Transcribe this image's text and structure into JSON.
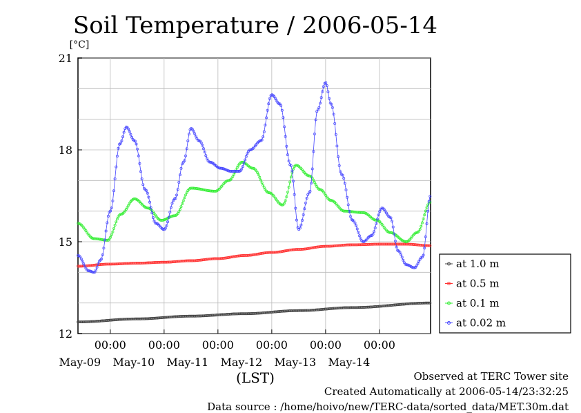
{
  "chart_data": {
    "type": "line",
    "title": "Soil Temperature / 2006-05-14",
    "ylabel": "[°C]",
    "xlabel": "(LST)",
    "ylim": [
      12,
      21
    ],
    "xlim": [
      8.4,
      14.95
    ],
    "yticks": [
      {
        "value": 12,
        "label": "12"
      },
      {
        "value": 15,
        "label": "15"
      },
      {
        "value": 18,
        "label": "18"
      },
      {
        "value": 21,
        "label": "21"
      }
    ],
    "xticks": [
      {
        "value": 9,
        "time": "00:00",
        "date": "May-09"
      },
      {
        "value": 10,
        "time": "00:00",
        "date": "May-10"
      },
      {
        "value": 11,
        "time": "00:00",
        "date": "May-11"
      },
      {
        "value": 12,
        "time": "00:00",
        "date": "May-12"
      },
      {
        "value": 13,
        "time": "00:00",
        "date": "May-13"
      },
      {
        "value": 14,
        "time": "00:00",
        "date": "May-14"
      }
    ],
    "grid": true,
    "legend_position": "right",
    "series": [
      {
        "name": "at 1.0 m",
        "color": "#444444",
        "x": [
          8.4,
          9.5,
          10.5,
          11.5,
          12.5,
          13.5,
          14.95
        ],
        "y": [
          12.38,
          12.48,
          12.57,
          12.65,
          12.75,
          12.85,
          13.0
        ]
      },
      {
        "name": "at 0.5 m",
        "color": "#ff3333",
        "x": [
          8.4,
          9.0,
          9.5,
          10.0,
          10.5,
          11.0,
          11.5,
          12.0,
          12.5,
          13.0,
          13.5,
          14.0,
          14.5,
          14.95
        ],
        "y": [
          14.2,
          14.27,
          14.3,
          14.33,
          14.38,
          14.45,
          14.55,
          14.65,
          14.75,
          14.85,
          14.9,
          14.92,
          14.92,
          14.87
        ]
      },
      {
        "name": "at 0.1 m",
        "color": "#33ee33",
        "x": [
          8.4,
          8.7,
          8.95,
          9.2,
          9.45,
          9.7,
          9.95,
          10.2,
          10.5,
          10.95,
          11.2,
          11.45,
          11.65,
          11.95,
          12.2,
          12.45,
          12.7,
          12.9,
          13.1,
          13.35,
          13.7,
          13.95,
          14.2,
          14.5,
          14.7,
          14.95
        ],
        "y": [
          15.6,
          15.1,
          15.05,
          15.9,
          16.4,
          16.1,
          15.7,
          15.85,
          16.75,
          16.65,
          17.0,
          17.6,
          17.4,
          16.6,
          16.2,
          17.5,
          17.15,
          16.7,
          16.35,
          16.0,
          15.95,
          15.7,
          15.3,
          15.0,
          15.3,
          16.3
        ]
      },
      {
        "name": "at 0.02 m",
        "color": "#4444ff",
        "x": [
          8.4,
          8.6,
          8.7,
          8.82,
          9.0,
          9.18,
          9.3,
          9.45,
          9.65,
          9.85,
          10.0,
          10.2,
          10.36,
          10.5,
          10.65,
          10.85,
          11.05,
          11.25,
          11.4,
          11.6,
          11.8,
          12.0,
          12.15,
          12.35,
          12.5,
          12.7,
          12.85,
          13.0,
          13.1,
          13.3,
          13.5,
          13.7,
          13.85,
          14.05,
          14.2,
          14.35,
          14.5,
          14.65,
          14.8,
          14.95
        ],
        "y": [
          14.55,
          14.05,
          14.0,
          14.4,
          16.0,
          18.2,
          18.75,
          18.3,
          16.7,
          15.6,
          15.4,
          16.4,
          17.6,
          18.7,
          18.3,
          17.6,
          17.4,
          17.3,
          17.3,
          18.0,
          18.3,
          19.8,
          19.5,
          17.5,
          15.4,
          16.6,
          19.3,
          20.2,
          19.5,
          17.2,
          15.7,
          15.0,
          15.2,
          16.1,
          15.8,
          14.7,
          14.25,
          14.15,
          14.5,
          16.5
        ]
      }
    ]
  },
  "footer": {
    "line1": "Observed at TERC Tower site",
    "line2": "Created Automatically at 2006-05-14/23:32:25",
    "line3": "Data source : /home/hoivo/new/TERC-data/sorted_data/MET.30m.dat"
  }
}
